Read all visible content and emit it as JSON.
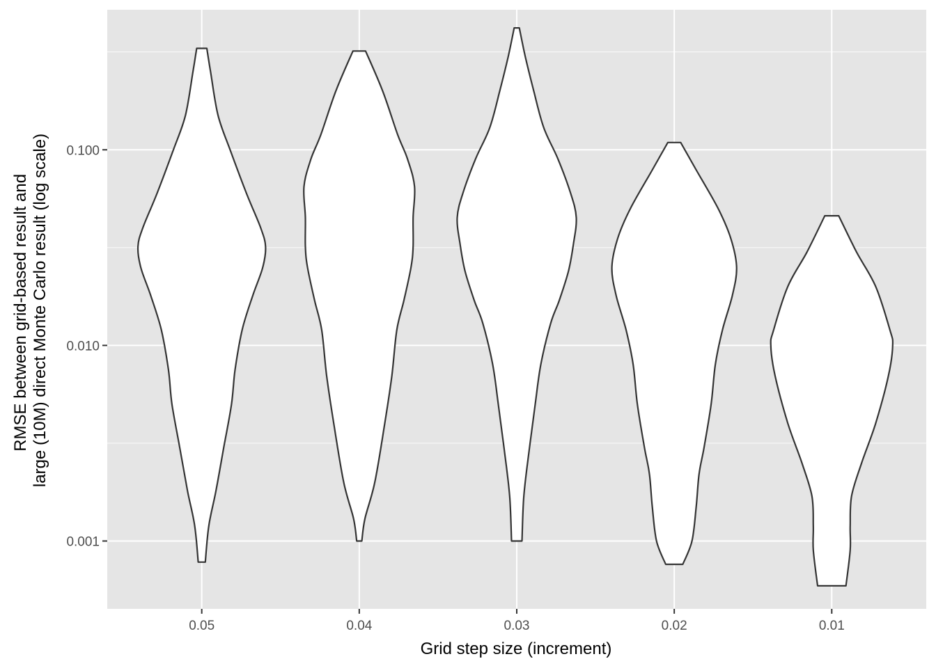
{
  "chart_data": {
    "type": "violin",
    "title": "",
    "xlabel": "Grid step size (increment)",
    "ylabel_lines": [
      "RMSE between grid-based result and",
      "large (10M) direct Monte Carlo result (log scale)"
    ],
    "y_scale": "log10",
    "ylim": [
      0.00045,
      0.52
    ],
    "y_ticks": [
      0.001,
      0.01,
      0.1
    ],
    "y_tick_labels": [
      "0.001",
      "0.010",
      "0.100"
    ],
    "categories": [
      "0.05",
      "0.04",
      "0.03",
      "0.02",
      "0.01"
    ],
    "grid": true,
    "panel_color": "#e5e5e5",
    "grid_color": "#ffffff",
    "violin_fill": "#ffffff",
    "violin_stroke": "#333333",
    "violins": [
      {
        "category": "0.05",
        "min": 0.00078,
        "max": 0.33,
        "profile": [
          [
            0.33,
            0.072
          ],
          [
            0.25,
            0.125
          ],
          [
            0.15,
            0.23
          ],
          [
            0.1,
            0.4
          ],
          [
            0.06,
            0.63
          ],
          [
            0.04,
            0.83
          ],
          [
            0.032,
            0.9
          ],
          [
            0.025,
            0.86
          ],
          [
            0.018,
            0.72
          ],
          [
            0.012,
            0.57
          ],
          [
            0.0075,
            0.47
          ],
          [
            0.005,
            0.42
          ],
          [
            0.003,
            0.31
          ],
          [
            0.0018,
            0.2
          ],
          [
            0.0012,
            0.1
          ],
          [
            0.00078,
            0.05
          ]
        ]
      },
      {
        "category": "0.04",
        "min": 0.001,
        "max": 0.32,
        "profile": [
          [
            0.32,
            0.089
          ],
          [
            0.2,
            0.33
          ],
          [
            0.12,
            0.54
          ],
          [
            0.09,
            0.68
          ],
          [
            0.065,
            0.78
          ],
          [
            0.045,
            0.76
          ],
          [
            0.032,
            0.76
          ],
          [
            0.025,
            0.73
          ],
          [
            0.017,
            0.63
          ],
          [
            0.012,
            0.53
          ],
          [
            0.007,
            0.46
          ],
          [
            0.004,
            0.36
          ],
          [
            0.002,
            0.22
          ],
          [
            0.0013,
            0.08
          ],
          [
            0.001,
            0.036
          ]
        ]
      },
      {
        "category": "0.03",
        "min": 0.001,
        "max": 0.42,
        "profile": [
          [
            0.42,
            0.036
          ],
          [
            0.3,
            0.12
          ],
          [
            0.2,
            0.24
          ],
          [
            0.13,
            0.38
          ],
          [
            0.09,
            0.58
          ],
          [
            0.06,
            0.76
          ],
          [
            0.045,
            0.84
          ],
          [
            0.033,
            0.8
          ],
          [
            0.024,
            0.73
          ],
          [
            0.017,
            0.6
          ],
          [
            0.013,
            0.48
          ],
          [
            0.008,
            0.34
          ],
          [
            0.005,
            0.26
          ],
          [
            0.003,
            0.18
          ],
          [
            0.0017,
            0.1
          ],
          [
            0.001,
            0.074
          ]
        ]
      },
      {
        "category": "0.02",
        "min": 0.00076,
        "max": 0.109,
        "profile": [
          [
            0.109,
            0.091
          ],
          [
            0.08,
            0.3
          ],
          [
            0.05,
            0.62
          ],
          [
            0.035,
            0.8
          ],
          [
            0.025,
            0.88
          ],
          [
            0.018,
            0.82
          ],
          [
            0.012,
            0.68
          ],
          [
            0.008,
            0.58
          ],
          [
            0.005,
            0.52
          ],
          [
            0.003,
            0.42
          ],
          [
            0.0022,
            0.35
          ],
          [
            0.0015,
            0.31
          ],
          [
            0.001,
            0.25
          ],
          [
            0.00076,
            0.12
          ]
        ]
      },
      {
        "category": "0.01",
        "min": 0.00059,
        "max": 0.046,
        "profile": [
          [
            0.046,
            0.098
          ],
          [
            0.03,
            0.35
          ],
          [
            0.02,
            0.62
          ],
          [
            0.012,
            0.82
          ],
          [
            0.01,
            0.86
          ],
          [
            0.007,
            0.8
          ],
          [
            0.004,
            0.62
          ],
          [
            0.0025,
            0.42
          ],
          [
            0.0017,
            0.28
          ],
          [
            0.0012,
            0.26
          ],
          [
            0.0009,
            0.26
          ],
          [
            0.00059,
            0.2
          ]
        ]
      }
    ]
  }
}
